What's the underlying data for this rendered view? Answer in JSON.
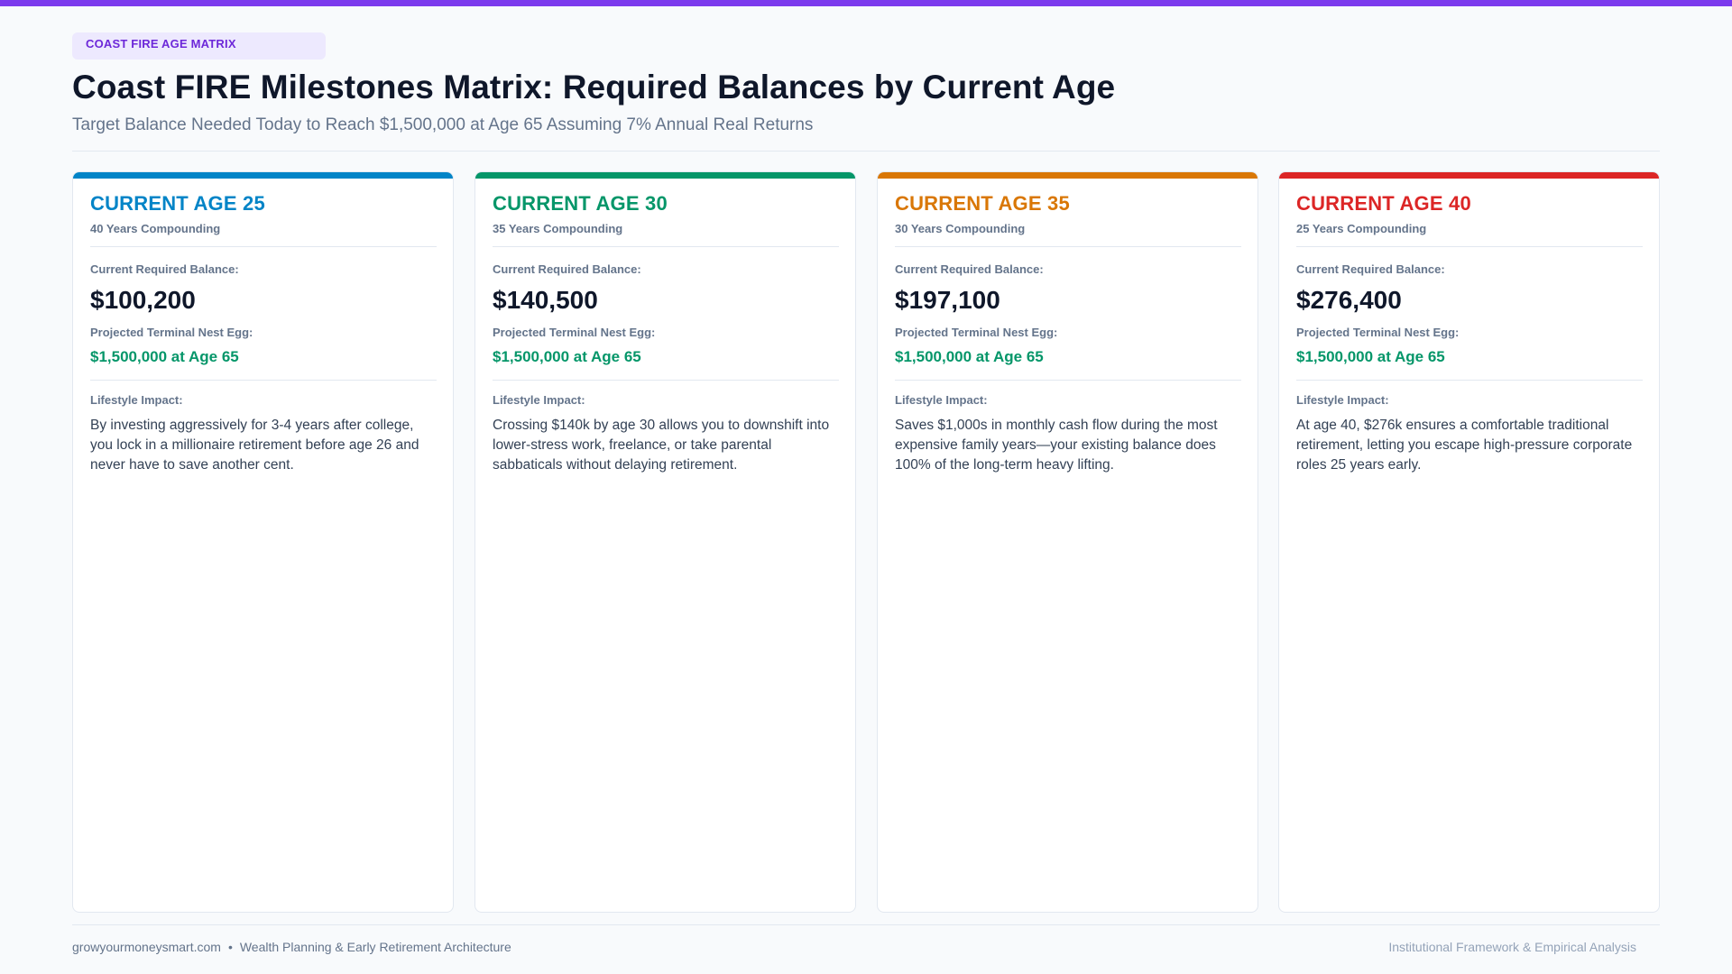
{
  "colors": {
    "accent": "#7c3aed",
    "age25": "#0284c7",
    "age30": "#059669",
    "age35": "#d97706",
    "age40": "#dc2626",
    "nest_egg": "#059669"
  },
  "header": {
    "badge": "COAST FIRE AGE MATRIX",
    "title": "Coast FIRE Milestones Matrix: Required Balances by Current Age",
    "subtitle": "Target Balance Needed Today to Reach $1,500,000 at Age 65 Assuming 7% Annual Real Returns"
  },
  "cards": [
    {
      "age_title": "CURRENT AGE 25",
      "years": "40 Years Compounding",
      "balance_label": "Current Required Balance:",
      "balance": "$100,200",
      "egg_label": "Projected Terminal Nest Egg:",
      "egg": "$1,500,000 at Age 65",
      "impact_label": "Lifestyle Impact:",
      "impact": "By investing aggressively for 3-4 years after college, you lock in a millionaire retirement before age 26 and never have to save another cent."
    },
    {
      "age_title": "CURRENT AGE 30",
      "years": "35 Years Compounding",
      "balance_label": "Current Required Balance:",
      "balance": "$140,500",
      "egg_label": "Projected Terminal Nest Egg:",
      "egg": "$1,500,000 at Age 65",
      "impact_label": "Lifestyle Impact:",
      "impact": "Crossing $140k by age 30 allows you to downshift into lower-stress work, freelance, or take parental sabbaticals without delaying retirement."
    },
    {
      "age_title": "CURRENT AGE 35",
      "years": "30 Years Compounding",
      "balance_label": "Current Required Balance:",
      "balance": "$197,100",
      "egg_label": "Projected Terminal Nest Egg:",
      "egg": "$1,500,000 at Age 65",
      "impact_label": "Lifestyle Impact:",
      "impact": "Saves $1,000s in monthly cash flow during the most expensive family years—your existing balance does 100% of the long-term heavy lifting."
    },
    {
      "age_title": "CURRENT AGE 40",
      "years": "25 Years Compounding",
      "balance_label": "Current Required Balance:",
      "balance": "$276,400",
      "egg_label": "Projected Terminal Nest Egg:",
      "egg": "$1,500,000 at Age 65",
      "impact_label": "Lifestyle Impact:",
      "impact": "At age 40, $276k ensures a comfortable traditional retirement, letting you escape high-pressure corporate roles 25 years early."
    }
  ],
  "footer": {
    "site": "growyourmoneysmart.com",
    "separator": "•",
    "tagline": "Wealth Planning & Early Retirement Architecture",
    "right": "Institutional Framework & Empirical Analysis"
  }
}
